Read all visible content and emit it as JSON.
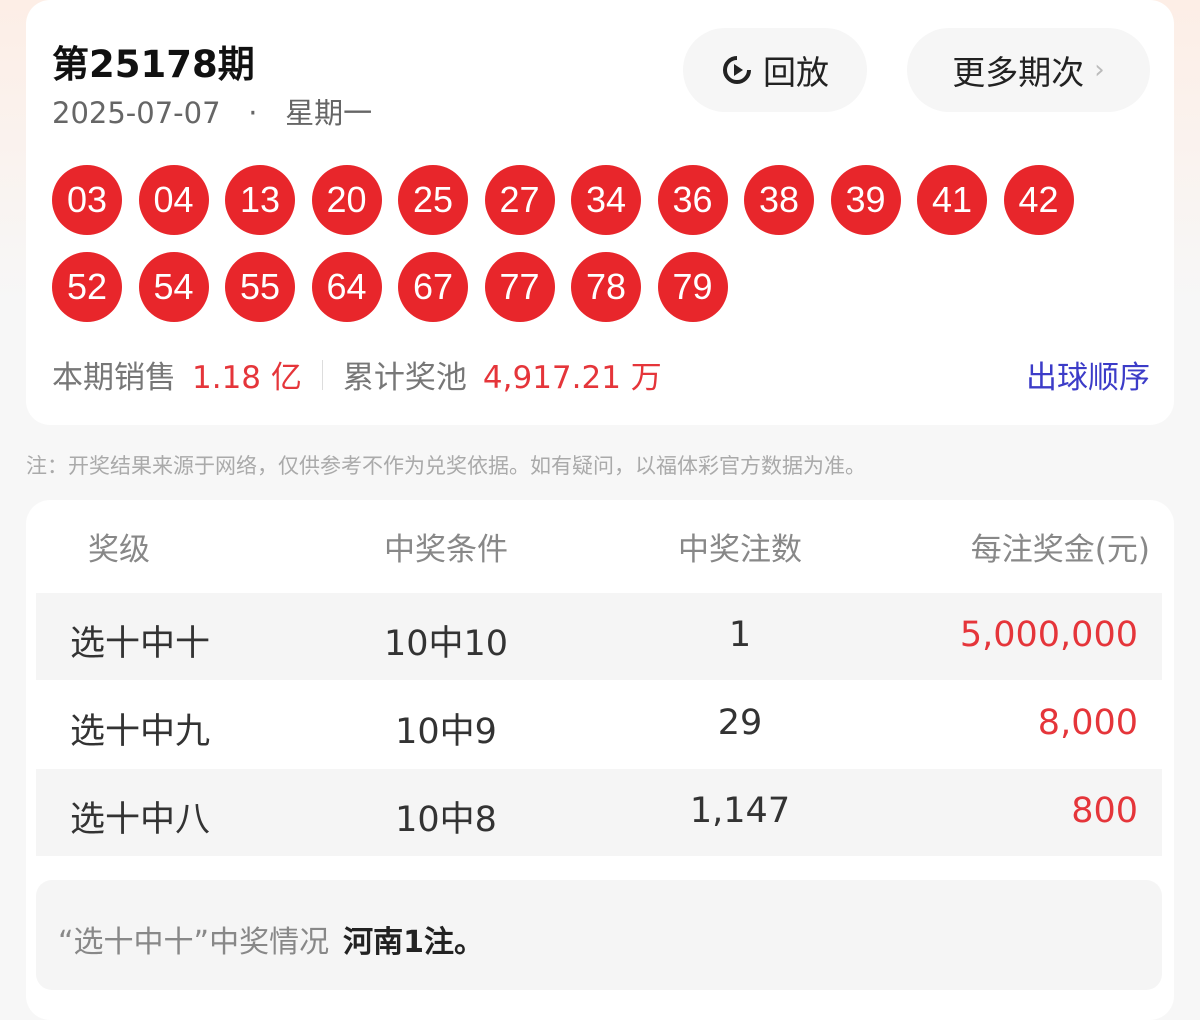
{
  "header": {
    "issue": "第25178期",
    "date": "2025-07-07",
    "separator": "·",
    "weekday": "星期一",
    "replay_label": "回放",
    "replay_icon": "replay-icon",
    "more_label": "更多期次",
    "more_icon": "chevron-right-icon"
  },
  "balls": [
    "03",
    "04",
    "13",
    "20",
    "25",
    "27",
    "34",
    "36",
    "38",
    "39",
    "41",
    "42",
    "52",
    "54",
    "55",
    "64",
    "67",
    "77",
    "78",
    "79"
  ],
  "ball_color": "#e8262b",
  "sales": {
    "label": "本期销售",
    "value": "1.18 亿",
    "pool_label": "累计奖池",
    "pool_value": "4,917.21 万",
    "order_link": "出球顺序"
  },
  "note": "注：开奖结果来源于网络，仅供参考不作为兑奖依据。如有疑问，以福体彩官方数据为准。",
  "table": {
    "headers": [
      "奖级",
      "中奖条件",
      "中奖注数",
      "每注奖金(元)"
    ],
    "rows": [
      [
        "选十中十",
        "10中10",
        "1",
        "5,000,000"
      ],
      [
        "选十中九",
        "10中9",
        "29",
        "8,000"
      ],
      [
        "选十中八",
        "10中8",
        "1,147",
        "800"
      ]
    ]
  },
  "winners": {
    "label": "“选十中十”中奖情况",
    "value": "河南1注。"
  }
}
